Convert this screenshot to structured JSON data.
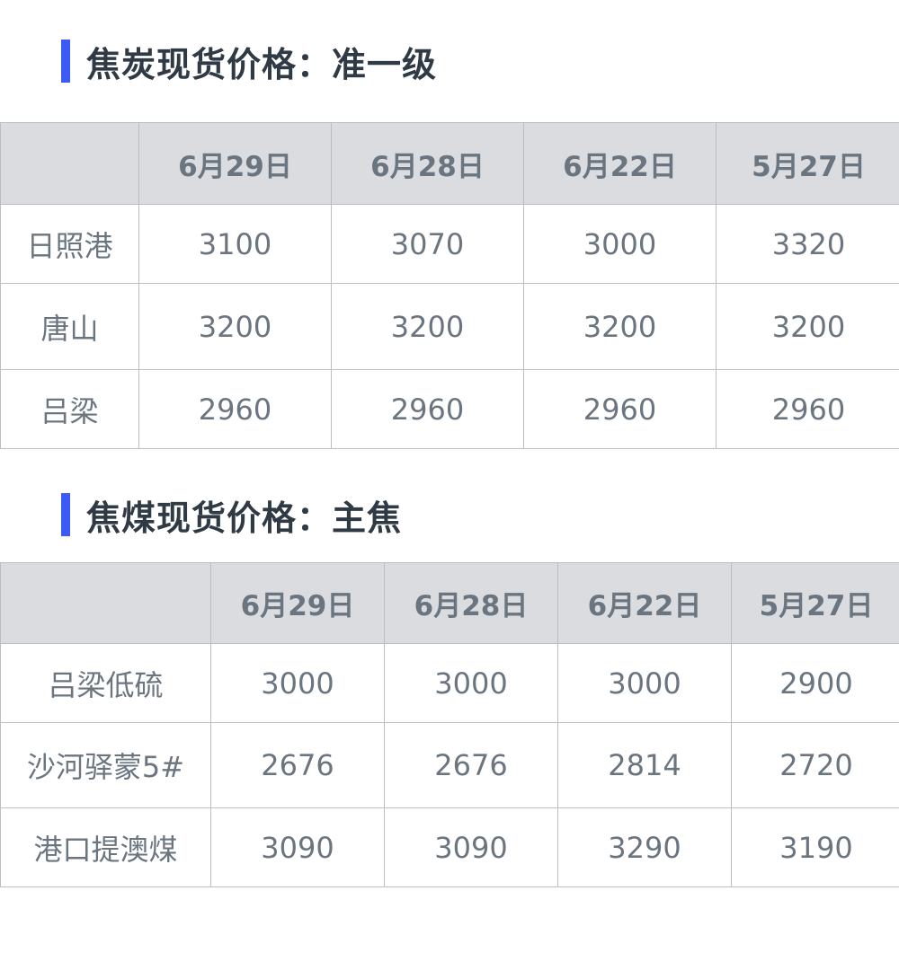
{
  "accent_color": "#3e5af6",
  "sections": [
    {
      "title": "焦炭现货价格：准一级",
      "columns": [
        "",
        "6月29日",
        "6月28日",
        "6月22日",
        "5月27日"
      ],
      "rows": [
        [
          "日照港",
          "3100",
          "3070",
          "3000",
          "3320"
        ],
        [
          "唐山",
          "3200",
          "3200",
          "3200",
          "3200"
        ],
        [
          "吕梁",
          "2960",
          "2960",
          "2960",
          "2960"
        ]
      ]
    },
    {
      "title": "焦煤现货价格：主焦",
      "columns": [
        "",
        "6月29日",
        "6月28日",
        "6月22日",
        "5月27日"
      ],
      "rows": [
        [
          "吕梁低硫",
          "3000",
          "3000",
          "3000",
          "2900"
        ],
        [
          "沙河驿蒙5#",
          "2676",
          "2676",
          "2814",
          "2720"
        ],
        [
          "港口提澳煤",
          "3090",
          "3090",
          "3290",
          "3190"
        ]
      ]
    }
  ]
}
